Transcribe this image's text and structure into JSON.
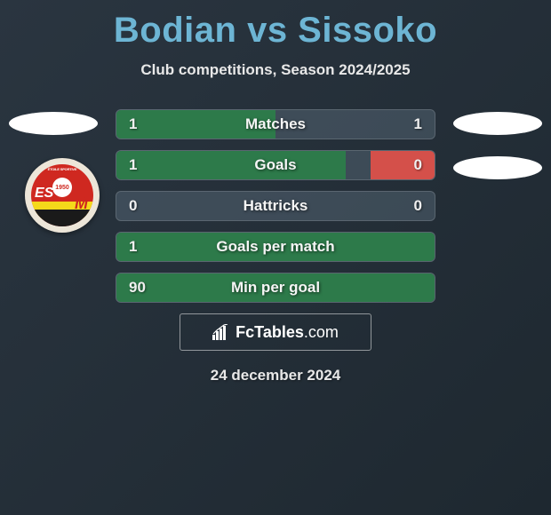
{
  "header": {
    "title": "Bodian vs Sissoko",
    "subtitle": "Club competitions, Season 2024/2025",
    "title_color": "#6db5d4"
  },
  "badge": {
    "letters_left": "ES",
    "letter_right": "M",
    "year": "1950",
    "colors": {
      "red": "#cf2820",
      "yellow": "#f5d91a",
      "black": "#1a1a1a"
    }
  },
  "stats": {
    "rows": [
      {
        "label": "Matches",
        "left": "1",
        "right": "1",
        "left_pct": 50,
        "right_pct": 50,
        "show_right_fill": false
      },
      {
        "label": "Goals",
        "left": "1",
        "right": "0",
        "left_pct": 72,
        "right_pct": 20,
        "show_right_fill": true
      },
      {
        "label": "Hattricks",
        "left": "0",
        "right": "0",
        "left_pct": 0,
        "right_pct": 0,
        "show_right_fill": false
      },
      {
        "label": "Goals per match",
        "left": "1",
        "right": "",
        "left_pct": 100,
        "right_pct": 0,
        "show_right_fill": false
      },
      {
        "label": "Min per goal",
        "left": "90",
        "right": "",
        "left_pct": 100,
        "right_pct": 0,
        "show_right_fill": false
      }
    ],
    "fill_left_color": "#2d7a4a",
    "fill_right_color": "#d4504a"
  },
  "brand": {
    "name_prefix": "Fc",
    "name_main": "Tables",
    "name_suffix": ".com"
  },
  "footer": {
    "date": "24 december 2024"
  }
}
